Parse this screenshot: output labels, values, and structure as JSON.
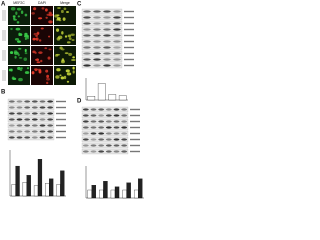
{
  "panels": [
    {
      "letter": "A",
      "headers": [
        "MEF2C",
        "DAPI",
        "Merge"
      ]
    },
    {
      "letter": "B"
    },
    {
      "letter": "C"
    },
    {
      "letter": "D"
    }
  ],
  "chart_data": [
    {
      "type": "bar",
      "categories": [
        null,
        null,
        null,
        null
      ],
      "ylim": [
        0,
        6
      ],
      "series": [
        {
          "color": "#ffffff",
          "values": [
            1,
            4.5,
            1.5,
            1.2
          ]
        }
      ]
    },
    {
      "type": "bar",
      "categories": [
        null,
        null,
        null,
        null,
        null
      ],
      "ylim": [
        0,
        4
      ],
      "series": [
        {
          "color": "#ffffff",
          "values": [
            1,
            1.2,
            0.9,
            1.1,
            1
          ]
        },
        {
          "color": "#222222",
          "values": [
            2.6,
            1.8,
            3.2,
            1.5,
            2.2
          ]
        }
      ]
    },
    {
      "type": "bar",
      "categories": [
        null,
        null,
        null,
        null,
        null
      ],
      "ylim": [
        0,
        4
      ],
      "series": [
        {
          "color": "#ffffff",
          "values": [
            1,
            1,
            1,
            1,
            1
          ]
        },
        {
          "color": "#222222",
          "values": [
            1.6,
            2.1,
            1.4,
            1.9,
            2.4
          ]
        }
      ]
    }
  ]
}
